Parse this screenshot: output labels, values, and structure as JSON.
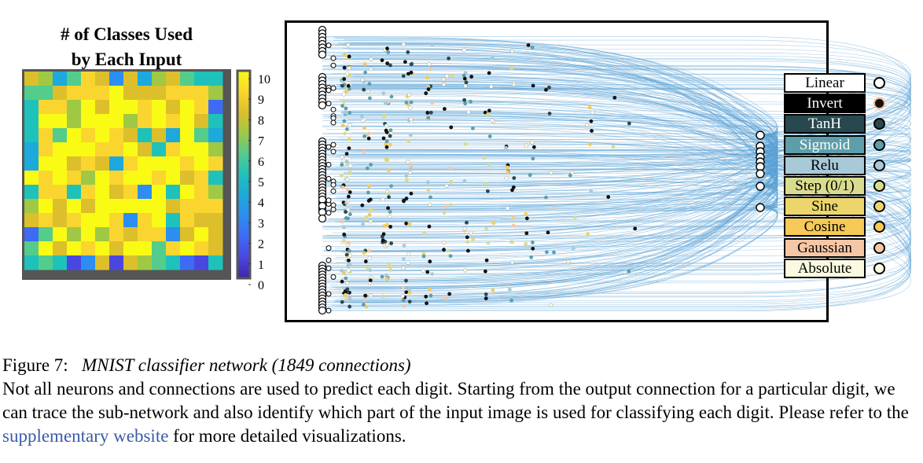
{
  "heatmap": {
    "title_line1": "# of Classes Used",
    "title_line2": "by Each Input",
    "colorbar_ticks": [
      "10",
      "9",
      "8",
      "7",
      "6",
      "5",
      "4",
      "3",
      "2",
      "1",
      "0"
    ],
    "colormap": [
      "#3e26a8",
      "#4a47e0",
      "#3d6bf4",
      "#2b8ef0",
      "#1da9db",
      "#1fc1bb",
      "#53cc8c",
      "#9fc944",
      "#dcbf2b",
      "#fbd52f",
      "#f9fb15"
    ],
    "grid_rows": 14,
    "grid_cols": 14
  },
  "network": {
    "legend": [
      {
        "label": "Linear",
        "fill": "#ffffff",
        "text": "#000000",
        "dot": "#ffffff",
        "dot_border": "#000000"
      },
      {
        "label": "Invert",
        "fill": "#000000",
        "text": "#ffffff",
        "dot": "#111111",
        "dot_border": "#f4b48c"
      },
      {
        "label": "TanH",
        "fill": "#28484f",
        "text": "#ffffff",
        "dot": "#28484f",
        "dot_border": "#000000"
      },
      {
        "label": "Sigmoid",
        "fill": "#5e9eaa",
        "text": "#ffffff",
        "dot": "#5e9eaa",
        "dot_border": "#000000"
      },
      {
        "label": "Relu",
        "fill": "#a8c9d8",
        "text": "#000000",
        "dot": "#a8c9d8",
        "dot_border": "#000000"
      },
      {
        "label": "Step (0/1)",
        "fill": "#d9dc8e",
        "text": "#000000",
        "dot": "#d9dc8e",
        "dot_border": "#000000"
      },
      {
        "label": "Sine",
        "fill": "#ecd66b",
        "text": "#000000",
        "dot": "#ecd66b",
        "dot_border": "#000000"
      },
      {
        "label": "Cosine",
        "fill": "#f7c956",
        "text": "#000000",
        "dot": "#f7c956",
        "dot_border": "#000000"
      },
      {
        "label": "Gaussian",
        "fill": "#f6c7a5",
        "text": "#000000",
        "dot": "#f6c7a5",
        "dot_border": "#000000"
      },
      {
        "label": "Absolute",
        "fill": "#fafae0",
        "text": "#000000",
        "dot": "#fafae0",
        "dot_border": "#000000"
      }
    ],
    "edge_color": "#5ba3d6"
  },
  "caption": {
    "label": "Figure 7:",
    "title": "MNIST classifier network (1849 connections)",
    "text_before_link": "Not all neurons and connections are used to predict each digit. Starting from the output connection for a particular digit, we can trace the sub-network and also identify which part of the input image is used for classifying each digit. Please refer to the ",
    "link_text": "supplementary website",
    "text_after_link": " for more detailed visualizations."
  }
}
